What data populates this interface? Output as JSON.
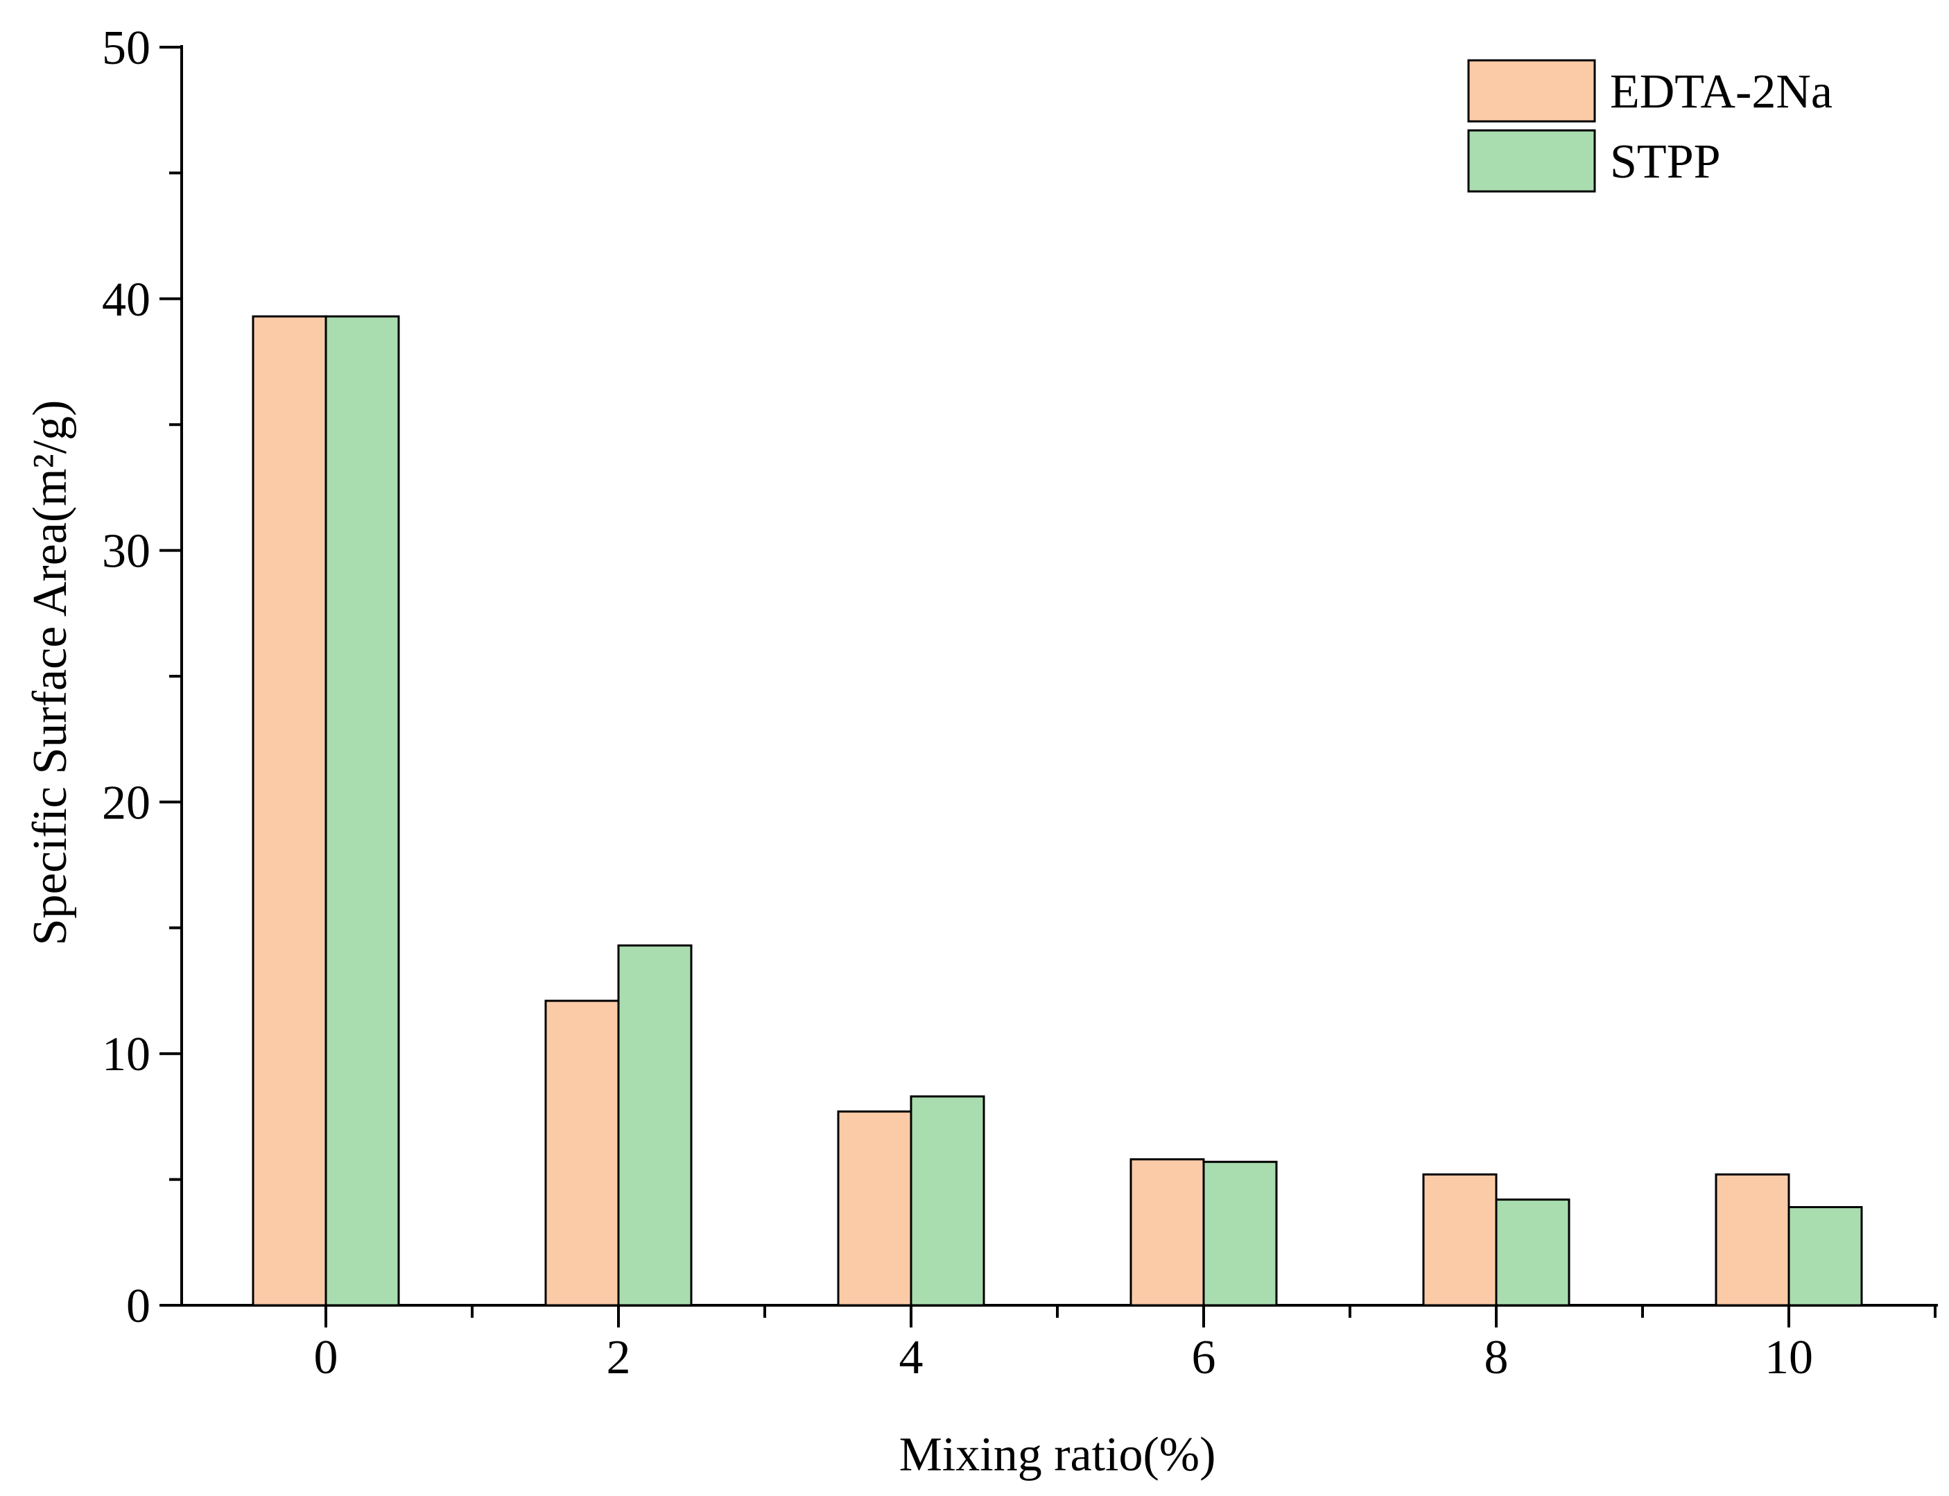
{
  "chart_data": {
    "type": "bar",
    "title": "",
    "xlabel": "Mixing ratio(%)",
    "ylabel": "Specific Surface Area(m²/g)",
    "categories": [
      "0",
      "2",
      "4",
      "6",
      "8",
      "10"
    ],
    "ylim": [
      0,
      50
    ],
    "yticks": [
      "0",
      "10",
      "20",
      "30",
      "40",
      "50"
    ],
    "grid": false,
    "legend_position": "top-right",
    "series": [
      {
        "name": "EDTA-2Na",
        "color": "#FBCBA8",
        "values": [
          39.3,
          12.1,
          7.7,
          5.8,
          5.2,
          5.2
        ]
      },
      {
        "name": "STPP",
        "color": "#A9DDB0",
        "values": [
          39.3,
          14.3,
          8.3,
          5.7,
          4.2,
          3.9
        ]
      }
    ]
  }
}
